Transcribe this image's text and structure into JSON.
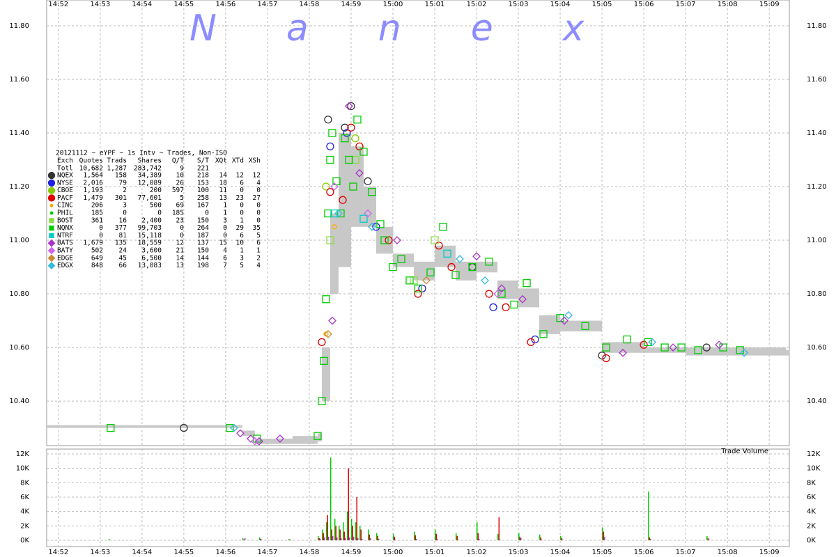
{
  "chart_data": [
    {
      "type": "scatter",
      "watermark": "Nanex",
      "xlim": [
        891.72,
        909.48
      ],
      "xticks": [
        {
          "value": 892,
          "label": "14:52"
        },
        {
          "value": 893,
          "label": "14:53"
        },
        {
          "value": 894,
          "label": "14:54"
        },
        {
          "value": 895,
          "label": "14:55"
        },
        {
          "value": 896,
          "label": "14:56"
        },
        {
          "value": 897,
          "label": "14:57"
        },
        {
          "value": 898,
          "label": "14:58"
        },
        {
          "value": 899,
          "label": "14:59"
        },
        {
          "value": 900,
          "label": "15:00"
        },
        {
          "value": 901,
          "label": "15:01"
        },
        {
          "value": 902,
          "label": "15:02"
        },
        {
          "value": 903,
          "label": "15:03"
        },
        {
          "value": 904,
          "label": "15:04"
        },
        {
          "value": 905,
          "label": "15:05"
        },
        {
          "value": 906,
          "label": "15:06"
        },
        {
          "value": 907,
          "label": "15:07"
        },
        {
          "value": 908,
          "label": "15:08"
        },
        {
          "value": 909,
          "label": "15:09"
        }
      ],
      "ylim": [
        10.234,
        11.896
      ],
      "yticks": [
        {
          "value": 10.4,
          "label": "10.40"
        },
        {
          "value": 10.6,
          "label": "10.60"
        },
        {
          "value": 10.8,
          "label": "10.80"
        },
        {
          "value": 11.0,
          "label": "11.00"
        },
        {
          "value": 11.2,
          "label": "11.20"
        },
        {
          "value": 11.4,
          "label": "11.40"
        },
        {
          "value": 11.6,
          "label": "11.60"
        },
        {
          "value": 11.8,
          "label": "11.80"
        }
      ],
      "grid": true,
      "table": {
        "title": "20121112 ~ eYPF ~ 1s Intv ~ Trades, Non-ISO",
        "columns": [
          "Exch",
          "Quotes",
          "Trads",
          "Shares",
          "Q/T",
          "S/T",
          "XQt",
          "XTd",
          "XSh"
        ],
        "total": [
          "Totl",
          "10,682",
          "1,287",
          "283,742",
          "9",
          "221"
        ]
      },
      "band": {
        "color": "#c8c8c8",
        "x": [
          891.7,
          896.0,
          896.4,
          896.7,
          897.6,
          898.2,
          898.3,
          898.5,
          898.7,
          899.0,
          899.3,
          899.6,
          900.0,
          900.5,
          901.0,
          901.5,
          902.0,
          902.5,
          903.0,
          903.5,
          904.0,
          904.5,
          905.0,
          905.5,
          906.0,
          907.0,
          908.0,
          909.4
        ],
        "low": [
          10.3,
          10.3,
          10.27,
          10.24,
          10.24,
          10.25,
          10.4,
          10.8,
          10.9,
          11.05,
          11.05,
          10.95,
          10.9,
          10.85,
          10.9,
          10.85,
          10.88,
          10.78,
          10.75,
          10.65,
          10.66,
          10.66,
          10.58,
          10.58,
          10.58,
          10.57,
          10.57,
          10.57
        ],
        "high": [
          10.31,
          10.31,
          10.29,
          10.26,
          10.27,
          10.28,
          10.6,
          11.1,
          11.4,
          11.35,
          11.2,
          11.05,
          10.95,
          10.92,
          10.98,
          10.92,
          10.92,
          10.85,
          10.82,
          10.72,
          10.7,
          10.7,
          10.62,
          10.62,
          10.6,
          10.6,
          10.6,
          10.59
        ]
      },
      "series": [
        {
          "name": "NQEX",
          "color": "#333333",
          "marker": "circle",
          "stats": [
            "1,564",
            "158",
            "34,389",
            "10",
            "218",
            "14",
            "12",
            "12"
          ],
          "x": [
            895.0,
            898.45,
            898.85,
            899.0,
            899.4,
            901.9,
            905.0,
            907.5
          ],
          "values": [
            10.3,
            11.45,
            11.42,
            11.5,
            11.22,
            10.9,
            10.57,
            10.6
          ]
        },
        {
          "name": "NYSE",
          "color": "#2020e0",
          "marker": "circle",
          "stats": [
            "2,016",
            "79",
            "12,089",
            "26",
            "153",
            "18",
            "6",
            "4"
          ],
          "x": [
            898.5,
            898.9,
            899.6,
            900.7,
            902.4,
            903.4
          ],
          "values": [
            11.35,
            11.4,
            11.05,
            10.82,
            10.75,
            10.63
          ]
        },
        {
          "name": "CBOE",
          "color": "#88cc00",
          "marker": "circle",
          "stats": [
            "1,193",
            "2",
            "200",
            "597",
            "100",
            "11",
            "0",
            "0"
          ],
          "x": [
            898.4,
            899.1
          ],
          "values": [
            11.2,
            11.38
          ]
        },
        {
          "name": "PACF",
          "color": "#e00000",
          "marker": "circle",
          "stats": [
            "1,479",
            "301",
            "77,601",
            "5",
            "258",
            "13",
            "23",
            "27"
          ],
          "x": [
            898.3,
            898.5,
            898.8,
            899.0,
            899.2,
            899.9,
            900.6,
            901.1,
            901.4,
            902.3,
            902.7,
            903.3,
            905.1,
            906.0
          ],
          "values": [
            10.62,
            11.18,
            11.15,
            11.42,
            11.35,
            11.0,
            10.8,
            10.98,
            10.9,
            10.8,
            10.75,
            10.62,
            10.56,
            10.61
          ]
        },
        {
          "name": "CINC",
          "color": "#ffaa00",
          "marker": "dot",
          "stats": [
            "206",
            "3",
            "500",
            "69",
            "167",
            "1",
            "0",
            "0"
          ],
          "x": [
            898.4,
            898.6
          ],
          "values": [
            10.65,
            11.05
          ]
        },
        {
          "name": "PHIL",
          "color": "#00cc00",
          "marker": "dot",
          "stats": [
            "185",
            "0",
            "0",
            "185",
            "0",
            "1",
            "0",
            "0"
          ],
          "x": [],
          "values": []
        },
        {
          "name": "BOST",
          "color": "#88dd44",
          "marker": "square",
          "stats": [
            "361",
            "16",
            "2,400",
            "23",
            "150",
            "3",
            "1",
            "0"
          ],
          "x": [
            898.5,
            899.1,
            900.5,
            901.0
          ],
          "values": [
            11.0,
            11.3,
            10.85,
            11.0
          ]
        },
        {
          "name": "NQNX",
          "color": "#00cc00",
          "marker": "square",
          "stats": [
            "0",
            "377",
            "99,703",
            "0",
            "264",
            "0",
            "29",
            "35"
          ],
          "x": [
            893.25,
            896.1,
            896.75,
            898.2,
            898.3,
            898.35,
            898.4,
            898.45,
            898.5,
            898.55,
            898.65,
            898.75,
            898.85,
            898.95,
            899.05,
            899.15,
            899.3,
            899.5,
            899.7,
            899.8,
            900.0,
            900.2,
            900.4,
            900.6,
            900.9,
            901.2,
            901.5,
            901.9,
            902.3,
            902.6,
            902.9,
            903.2,
            903.6,
            904.0,
            904.6,
            905.1,
            905.6,
            906.1,
            906.5,
            906.9,
            907.3,
            907.9,
            908.3
          ],
          "values": [
            10.3,
            10.3,
            10.26,
            10.27,
            10.4,
            10.55,
            10.78,
            11.1,
            11.3,
            11.4,
            11.22,
            11.1,
            11.38,
            11.3,
            11.2,
            11.45,
            11.33,
            11.18,
            11.06,
            11.0,
            10.9,
            10.93,
            10.85,
            10.82,
            10.88,
            11.05,
            10.87,
            10.9,
            10.92,
            10.8,
            10.76,
            10.84,
            10.65,
            10.71,
            10.68,
            10.6,
            10.63,
            10.62,
            10.6,
            10.6,
            10.59,
            10.6,
            10.59
          ]
        },
        {
          "name": "NTRF",
          "color": "#00cccc",
          "marker": "square",
          "stats": [
            "0",
            "81",
            "15,118",
            "0",
            "187",
            "0",
            "6",
            "5"
          ],
          "x": [
            898.6,
            899.3,
            901.3
          ],
          "values": [
            11.1,
            11.08,
            10.95
          ]
        },
        {
          "name": "BATS",
          "color": "#aa33cc",
          "marker": "diamond",
          "stats": [
            "1,679",
            "135",
            "18,559",
            "12",
            "137",
            "15",
            "10",
            "6"
          ],
          "x": [
            896.35,
            896.6,
            896.8,
            897.3,
            898.55,
            898.95,
            899.2,
            900.1,
            902.0,
            902.6,
            903.1,
            904.1,
            905.5,
            906.7,
            907.8
          ],
          "values": [
            10.28,
            10.26,
            10.25,
            10.26,
            10.7,
            11.5,
            11.25,
            11.0,
            10.94,
            10.82,
            10.78,
            10.7,
            10.58,
            10.6,
            10.61
          ]
        },
        {
          "name": "BATY",
          "color": "#cc66ee",
          "marker": "diamond",
          "stats": [
            "502",
            "24",
            "3,600",
            "21",
            "150",
            "4",
            "1",
            "1"
          ],
          "x": [
            896.7,
            898.6,
            899.4,
            902.5
          ],
          "values": [
            10.25,
            11.2,
            11.1,
            10.8
          ]
        },
        {
          "name": "EDGE",
          "color": "#cc8833",
          "marker": "diamond",
          "stats": [
            "649",
            "45",
            "6,500",
            "14",
            "144",
            "6",
            "3",
            "2"
          ],
          "x": [
            898.45,
            900.8
          ],
          "values": [
            10.65,
            10.85
          ]
        },
        {
          "name": "EDGX",
          "color": "#33bbdd",
          "marker": "diamond",
          "stats": [
            "848",
            "66",
            "13,083",
            "13",
            "198",
            "7",
            "5",
            "4"
          ],
          "x": [
            896.2,
            898.7,
            899.5,
            901.6,
            902.2,
            904.2,
            906.2,
            908.4
          ],
          "values": [
            10.3,
            11.1,
            11.05,
            10.93,
            10.85,
            10.72,
            10.62,
            10.58
          ]
        }
      ]
    },
    {
      "type": "bar",
      "title": "Trade Volume",
      "xlim": [
        891.72,
        909.48
      ],
      "xticks": [
        {
          "value": 892,
          "label": "14:52"
        },
        {
          "value": 893,
          "label": "14:53"
        },
        {
          "value": 894,
          "label": "14:54"
        },
        {
          "value": 895,
          "label": "14:55"
        },
        {
          "value": 896,
          "label": "14:56"
        },
        {
          "value": 897,
          "label": "14:57"
        },
        {
          "value": 898,
          "label": "14:58"
        },
        {
          "value": 899,
          "label": "14:59"
        },
        {
          "value": 900,
          "label": "15:00"
        },
        {
          "value": 901,
          "label": "15:01"
        },
        {
          "value": 902,
          "label": "15:02"
        },
        {
          "value": 903,
          "label": "15:03"
        },
        {
          "value": 904,
          "label": "15:04"
        },
        {
          "value": 905,
          "label": "15:05"
        },
        {
          "value": 906,
          "label": "15:06"
        },
        {
          "value": 907,
          "label": "15:07"
        },
        {
          "value": 908,
          "label": "15:08"
        },
        {
          "value": 909,
          "label": "15:09"
        }
      ],
      "ylim": [
        0,
        12000
      ],
      "yticks": [
        {
          "value": 0,
          "label": "0K"
        },
        {
          "value": 2000,
          "label": "2K"
        },
        {
          "value": 4000,
          "label": "4K"
        },
        {
          "value": 6000,
          "label": "6K"
        },
        {
          "value": 8000,
          "label": "8K"
        },
        {
          "value": 10000,
          "label": "10K"
        },
        {
          "value": 12000,
          "label": "12K"
        }
      ],
      "grid": true,
      "x": [
        893.2,
        895.0,
        896.4,
        896.8,
        897.5,
        898.2,
        898.3,
        898.4,
        898.5,
        898.6,
        898.7,
        898.8,
        898.9,
        899.0,
        899.1,
        899.2,
        899.4,
        899.6,
        900.0,
        900.5,
        901.0,
        901.5,
        902.0,
        902.5,
        903.0,
        903.5,
        904.0,
        905.0,
        906.1,
        907.5
      ],
      "series": [
        {
          "color": "#00cc00",
          "values": [
            200,
            100,
            300,
            400,
            200,
            600,
            1500,
            2500,
            11500,
            3000,
            2000,
            2500,
            4000,
            3000,
            2500,
            2000,
            1500,
            1000,
            900,
            1200,
            1500,
            1000,
            2500,
            900,
            1000,
            800,
            600,
            1800,
            6800,
            600
          ]
        },
        {
          "color": "#e00000",
          "values": [
            0,
            0,
            100,
            200,
            100,
            300,
            1000,
            3500,
            1500,
            2000,
            1500,
            1200,
            10000,
            2000,
            6000,
            1500,
            800,
            600,
            500,
            700,
            900,
            600,
            1000,
            3200,
            500,
            400,
            300,
            1200,
            400,
            300
          ]
        },
        {
          "color": "#aa33cc",
          "values": [
            0,
            0,
            300,
            100,
            0,
            200,
            400,
            500,
            600,
            400,
            300,
            300,
            400,
            500,
            300,
            200,
            300,
            200,
            100,
            200,
            200,
            100,
            200,
            100,
            300,
            100,
            100,
            500,
            200,
            100
          ]
        }
      ]
    }
  ]
}
